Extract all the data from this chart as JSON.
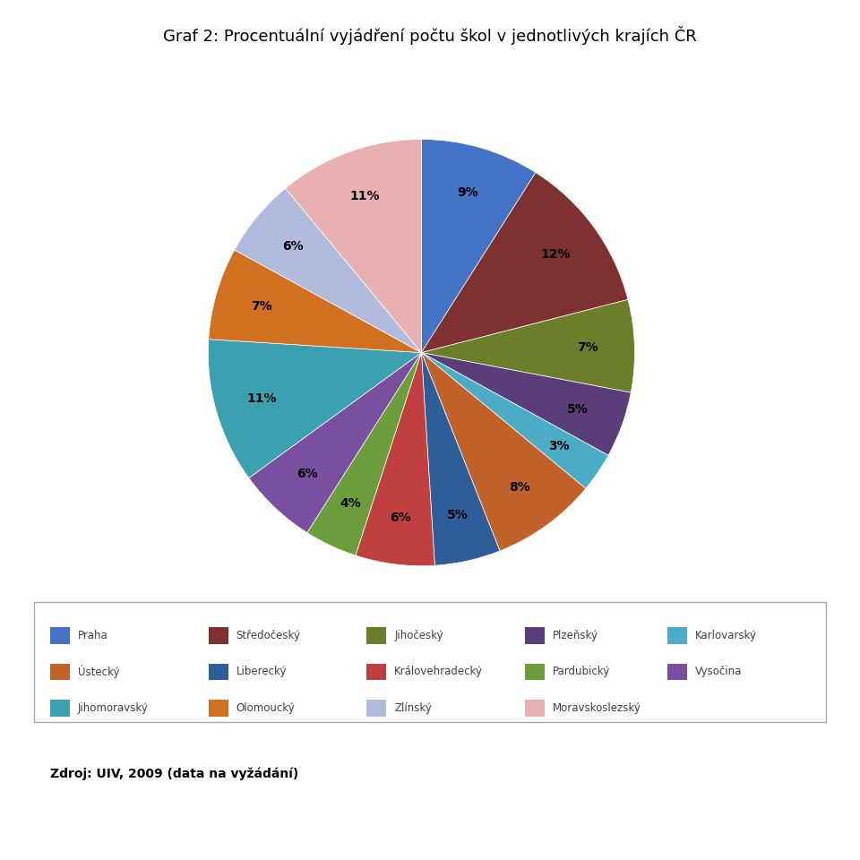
{
  "title": "Graf 2: Procentuální vyjádření počtu škol v jednotlivých krajích ČR",
  "labels": [
    "Praha",
    "Středočeský",
    "Jihočeský",
    "Plzeňský",
    "Karlovarský",
    "Ústecký",
    "Liberecký",
    "Královehradecký",
    "Pardubický",
    "Vysočina",
    "Jihomoravský",
    "Olomoucký",
    "Zlínský",
    "Moravskoslezský"
  ],
  "values": [
    9,
    12,
    7,
    5,
    3,
    8,
    5,
    6,
    4,
    6,
    11,
    7,
    6,
    11
  ],
  "colors": [
    "#4472C4",
    "#C0504D",
    "#9BBB59",
    "#8064A2",
    "#4BACC6",
    "#F79646",
    "#4F81BD",
    "#C0504D",
    "#9BBB59",
    "#7F5CA2",
    "#4BACC6",
    "#F79646",
    "#C6CFEF",
    "#FAC0C0"
  ],
  "source_text": "Zdroj: UIV, 2009 (data na vyžádání)",
  "startangle": 90,
  "background_color": "#FFFFFF",
  "title_fontsize": 13,
  "legend_fontsize": 9
}
